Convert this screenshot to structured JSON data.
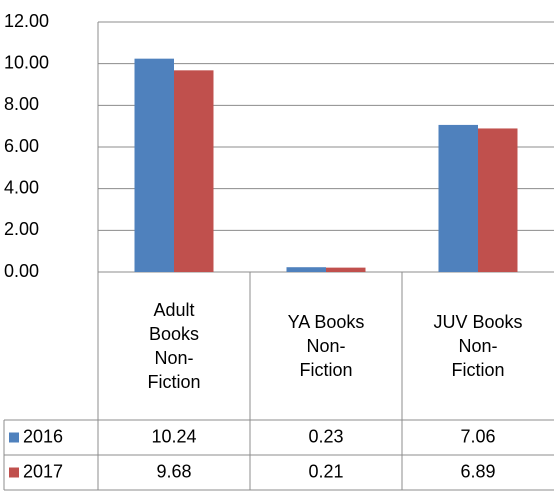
{
  "chart_data": {
    "type": "bar",
    "categories": [
      "Adult Books Non-Fiction",
      "YA Books Non-Fiction",
      "JUV Books Non-Fiction"
    ],
    "series": [
      {
        "name": "2016",
        "color": "#4f81bd",
        "values": [
          10.24,
          0.23,
          7.06
        ]
      },
      {
        "name": "2017",
        "color": "#c0504d",
        "values": [
          9.68,
          0.21,
          6.89
        ]
      }
    ],
    "ylim": [
      0,
      12
    ],
    "yticks": [
      {
        "value": 0,
        "label": "0.00"
      },
      {
        "value": 2,
        "label": "2.00"
      },
      {
        "value": 4,
        "label": "4.00"
      },
      {
        "value": 6,
        "label": "6.00"
      },
      {
        "value": 8,
        "label": "8.00"
      },
      {
        "value": 10,
        "label": "10.00"
      },
      {
        "value": 12,
        "label": "12.00"
      }
    ],
    "grid": true,
    "data_table": true
  }
}
